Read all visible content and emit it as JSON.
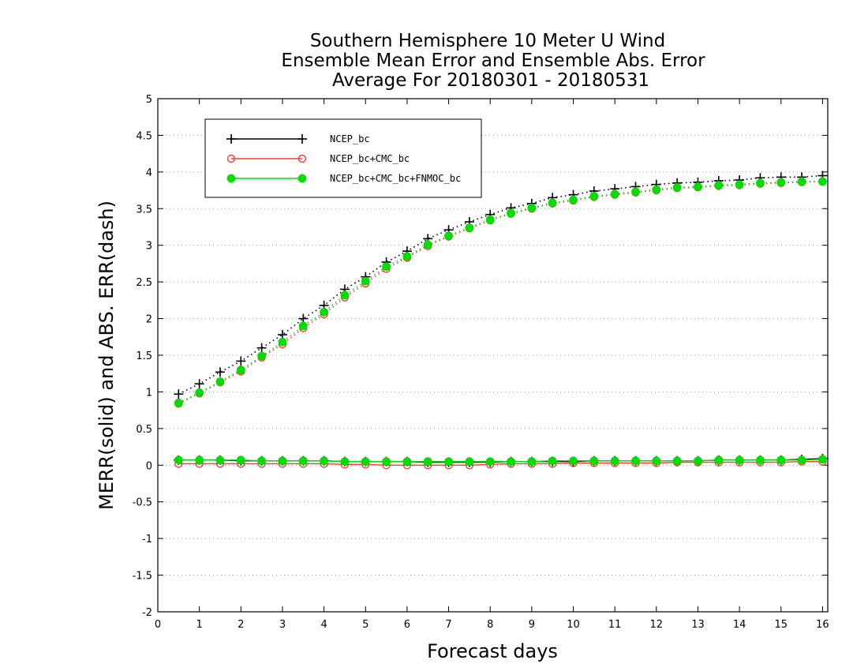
{
  "chart_data": {
    "type": "line",
    "title": [
      "Southern Hemisphere 10 Meter U Wind",
      "Ensemble Mean Error and Ensemble Abs. Error",
      "Average For 20180301 - 20180531"
    ],
    "xlabel": "Forecast days",
    "ylabel": "MERR(solid) and ABS. ERR(dash)",
    "xlim": [
      0,
      16.125
    ],
    "ylim": [
      -2,
      5
    ],
    "xticks": [
      0,
      1,
      2,
      3,
      4,
      5,
      6,
      7,
      8,
      9,
      10,
      11,
      12,
      13,
      14,
      15,
      16
    ],
    "yticks": [
      -2,
      -1.5,
      -1,
      -0.5,
      0,
      0.5,
      1,
      1.5,
      2,
      2.5,
      3,
      3.5,
      4,
      4.5,
      5
    ],
    "ytick_labels": [
      "-2",
      "-1.5",
      "-1",
      "-0.5",
      "0",
      "0.5",
      "1",
      "1.5",
      "2",
      "2.5",
      "3",
      "3.5",
      "4",
      "4.5",
      "5"
    ],
    "grid": "horizontal dotted",
    "legend_position": "top-left",
    "x": [
      0.5,
      1,
      1.5,
      2,
      2.5,
      3,
      3.5,
      4,
      4.5,
      5,
      5.5,
      6,
      6.5,
      7,
      7.5,
      8,
      8.5,
      9,
      9.5,
      10,
      10.5,
      11,
      11.5,
      12,
      12.5,
      13,
      13.5,
      14,
      14.5,
      15,
      15.5,
      16
    ],
    "series": [
      {
        "name": "NCEP_bc",
        "color": "#000000",
        "marker": "plus",
        "abs_err": [
          0.97,
          1.11,
          1.27,
          1.42,
          1.6,
          1.78,
          2.0,
          2.18,
          2.4,
          2.57,
          2.77,
          2.92,
          3.09,
          3.21,
          3.32,
          3.42,
          3.51,
          3.57,
          3.65,
          3.69,
          3.74,
          3.77,
          3.8,
          3.83,
          3.85,
          3.86,
          3.88,
          3.89,
          3.92,
          3.93,
          3.93,
          3.95
        ],
        "mean_err": [
          0.07,
          0.07,
          0.07,
          0.06,
          0.06,
          0.06,
          0.06,
          0.06,
          0.05,
          0.05,
          0.05,
          0.05,
          0.04,
          0.04,
          0.04,
          0.04,
          0.05,
          0.05,
          0.05,
          0.05,
          0.06,
          0.06,
          0.06,
          0.06,
          0.06,
          0.06,
          0.07,
          0.07,
          0.07,
          0.07,
          0.08,
          0.09
        ]
      },
      {
        "name": "NCEP_bc+CMC_bc",
        "color": "#ff3a3a",
        "marker": "open-circle",
        "abs_err": [
          0.84,
          0.98,
          1.13,
          1.28,
          1.47,
          1.65,
          1.87,
          2.06,
          2.29,
          2.48,
          2.68,
          2.83,
          2.99,
          3.12,
          3.23,
          3.34,
          3.43,
          3.5,
          3.57,
          3.61,
          3.66,
          3.69,
          3.72,
          3.75,
          3.78,
          3.79,
          3.81,
          3.82,
          3.84,
          3.85,
          3.86,
          3.87
        ],
        "mean_err": [
          0.02,
          0.02,
          0.02,
          0.02,
          0.02,
          0.02,
          0.02,
          0.02,
          0.01,
          0.01,
          0.0,
          0.0,
          0.0,
          0.0,
          0.0,
          0.01,
          0.02,
          0.02,
          0.02,
          0.03,
          0.03,
          0.03,
          0.03,
          0.03,
          0.04,
          0.04,
          0.04,
          0.04,
          0.04,
          0.04,
          0.05,
          0.05
        ]
      },
      {
        "name": "NCEP_bc+CMC_bc+FNMOC_bc",
        "color": "#00dd00",
        "marker": "filled-circle",
        "abs_err": [
          0.85,
          0.99,
          1.14,
          1.3,
          1.49,
          1.68,
          1.9,
          2.09,
          2.32,
          2.51,
          2.71,
          2.85,
          3.01,
          3.13,
          3.24,
          3.35,
          3.44,
          3.51,
          3.58,
          3.62,
          3.67,
          3.7,
          3.73,
          3.76,
          3.79,
          3.8,
          3.82,
          3.83,
          3.85,
          3.86,
          3.87,
          3.87
        ],
        "mean_err": [
          0.07,
          0.07,
          0.07,
          0.07,
          0.06,
          0.06,
          0.06,
          0.06,
          0.05,
          0.05,
          0.05,
          0.05,
          0.05,
          0.05,
          0.05,
          0.05,
          0.05,
          0.05,
          0.06,
          0.06,
          0.06,
          0.06,
          0.06,
          0.06,
          0.06,
          0.06,
          0.07,
          0.07,
          0.07,
          0.07,
          0.07,
          0.08
        ]
      }
    ]
  }
}
